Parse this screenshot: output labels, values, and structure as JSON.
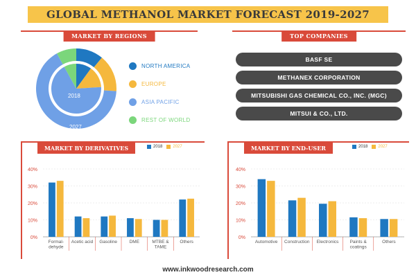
{
  "title": "GLOBAL METHANOL MARKET FORECAST 2019-2027",
  "footer": "www.inkwoodresearch.com",
  "colors": {
    "accent": "#d94a3a",
    "banner": "#f7c44a",
    "series2018": "#1f78c1",
    "series2027": "#f5b83d"
  },
  "regions": {
    "header": "MARKET BY REGIONS",
    "inner_label": "2018",
    "outer_label": "2027",
    "legend": [
      {
        "label": "NORTH AMERICA",
        "color": "#1f78c1"
      },
      {
        "label": "EUROPE",
        "color": "#f5b83d"
      },
      {
        "label": "ASIA PACIFIC",
        "color": "#6fa0e6"
      },
      {
        "label": "REST OF WORLD",
        "color": "#7bd67b"
      }
    ]
  },
  "companies": {
    "header": "TOP COMPANIES",
    "items": [
      "BASF SE",
      "METHANEX CORPORATION",
      "MITSUBISHI GAS CHEMICAL CO., INC. (MGC)",
      "MITSUI & CO., LTD."
    ]
  },
  "chart_data": [
    {
      "type": "bar",
      "title": "MARKET BY DERIVATIVES",
      "categories": [
        "Formal-dehyde",
        "Acetic acid",
        "Gasoline",
        "DME",
        "MTBE & TAME",
        "Others"
      ],
      "series": [
        {
          "name": "2018",
          "values": [
            32,
            12,
            12,
            11,
            10,
            22
          ]
        },
        {
          "name": "2027",
          "values": [
            33,
            11,
            12.5,
            10.5,
            10,
            22.5
          ]
        }
      ],
      "yticks": [
        "0%",
        "10%",
        "20%",
        "30%",
        "40%"
      ],
      "ylim": [
        0,
        40
      ]
    },
    {
      "type": "bar",
      "title": "MARKET BY END-USER",
      "categories": [
        "Automotive",
        "Construction",
        "Electronics",
        "Paints & coatings",
        "Others"
      ],
      "series": [
        {
          "name": "2018",
          "values": [
            34,
            21.5,
            19.5,
            11.5,
            10.5
          ]
        },
        {
          "name": "2027",
          "values": [
            33,
            23,
            21,
            11,
            10.5
          ]
        }
      ],
      "yticks": [
        "0%",
        "10%",
        "20%",
        "30%",
        "40%"
      ],
      "ylim": [
        0,
        40
      ]
    }
  ]
}
